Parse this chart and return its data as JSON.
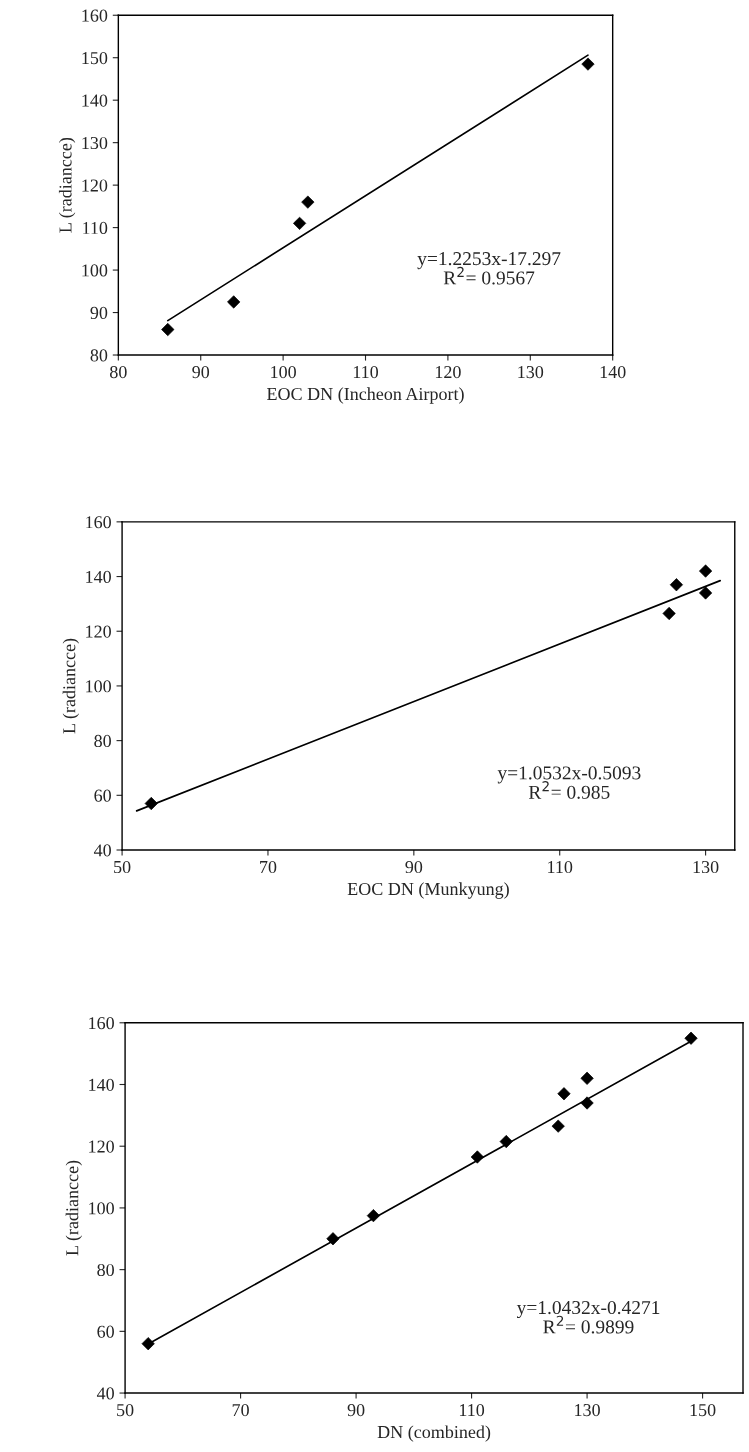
{
  "chart_data": [
    {
      "type": "scatter",
      "xlabel": "EOC DN (Incheon Airport)",
      "ylabel": "L (radiancce)",
      "xlim": [
        80,
        140
      ],
      "xticks": [
        80,
        90,
        100,
        110,
        120,
        130,
        140
      ],
      "ylim": [
        80,
        160
      ],
      "yticks": [
        80,
        90,
        100,
        110,
        120,
        130,
        140,
        150,
        160
      ],
      "grid": false,
      "legend": false,
      "marker": "diamond",
      "annotations": [
        "y=1.2253x-17.297\nR$^{2}$= 0.9567"
      ],
      "series": [
        {
          "color": "#000000",
          "x": [
            86,
            94,
            102,
            103,
            137
          ],
          "values": [
            86,
            92.5,
            111,
            116,
            148.5
          ]
        },
        {
          "type": "line",
          "color": "#000000",
          "line_style": "solid",
          "marker": "none",
          "x": [
            86,
            137
          ],
          "values": [
            88.1,
            150.6
          ]
        }
      ]
    },
    {
      "type": "scatter",
      "xlabel": "EOC DN (Munkyung)",
      "ylabel": "L (radiancce)",
      "xlim": [
        50,
        134
      ],
      "xticks": [
        50,
        70,
        90,
        110,
        130
      ],
      "ylim": [
        40,
        160
      ],
      "yticks": [
        40,
        60,
        80,
        100,
        120,
        140,
        160
      ],
      "grid": false,
      "legend": false,
      "marker": "diamond",
      "annotations": [
        "y=1.0532x-0.5093\nR$^{2}$= 0.985"
      ],
      "series": [
        {
          "color": "#000000",
          "x": [
            54,
            125,
            126,
            130,
            130
          ],
          "values": [
            57,
            126.5,
            137,
            142,
            134
          ]
        },
        {
          "type": "line",
          "color": "#000000",
          "line_style": "solid",
          "marker": "none",
          "x": [
            52,
            132
          ],
          "values": [
            54.3,
            138.5
          ]
        }
      ]
    },
    {
      "type": "scatter",
      "xlabel": "DN (combined)",
      "ylabel": "L (radiancce)",
      "xlim": [
        50,
        157
      ],
      "xticks": [
        50,
        70,
        90,
        110,
        130,
        150
      ],
      "ylim": [
        40,
        160
      ],
      "yticks": [
        40,
        60,
        80,
        100,
        120,
        140,
        160
      ],
      "grid": false,
      "legend": false,
      "marker": "diamond",
      "annotations": [
        "y=1.0432x-0.4271\nR$^{2}$= 0.9899"
      ],
      "series": [
        {
          "color": "#000000",
          "x": [
            54,
            86,
            93,
            111,
            116,
            125,
            126,
            130,
            130,
            148
          ],
          "values": [
            56,
            90,
            97.5,
            116.5,
            121.5,
            126.5,
            137,
            142,
            134,
            155
          ]
        },
        {
          "type": "line",
          "color": "#000000",
          "line_style": "solid",
          "marker": "none",
          "x": [
            54,
            148
          ],
          "values": [
            55.9,
            154.0
          ]
        }
      ]
    }
  ]
}
